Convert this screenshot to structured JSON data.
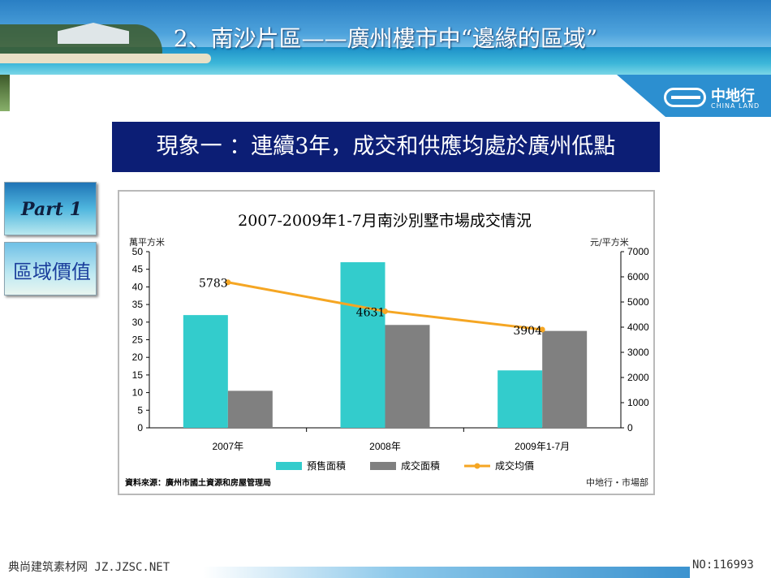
{
  "page": {
    "title": "2、南沙片區——廣州樓市中“邊緣的區域”",
    "headline": "現象一 ：連續3年，成交和供應均處於廣州低點",
    "logo": {
      "cn": "中地行",
      "en": "CHINA LAND"
    },
    "tabs": [
      {
        "label": "Part 1"
      },
      {
        "label": "區域價值"
      }
    ],
    "footer_left": "典尚建筑素材网 JZ.JZSC.NET",
    "footer_right": "NO:116993"
  },
  "colors": {
    "presale": "#33cccc",
    "transaction": "#808080",
    "avg_price": "#f5a623",
    "headline_bg": "#0c1e75"
  },
  "chart_data": {
    "type": "bar",
    "title": "2007-2009年1-7月南沙別墅市場成交情況",
    "categories": [
      "2007年",
      "2008年",
      "2009年1-7月"
    ],
    "y_left_label": "萬平方米",
    "y_right_label": "元/平方米",
    "y_left_ticks": [
      "0",
      "5",
      "10",
      "15",
      "20",
      "25",
      "30",
      "35",
      "40",
      "45",
      "50"
    ],
    "y_right_ticks": [
      "0",
      "1000",
      "2000",
      "3000",
      "4000",
      "5000",
      "6000",
      "7000"
    ],
    "y_left_range": [
      0,
      50
    ],
    "y_right_range": [
      0,
      7000
    ],
    "series": [
      {
        "name": "預售面積",
        "kind": "bar",
        "axis": "left",
        "values": [
          32,
          47,
          16.3
        ]
      },
      {
        "name": "成交面積",
        "kind": "bar",
        "axis": "left",
        "values": [
          10.5,
          29.2,
          27.5
        ]
      },
      {
        "name": "成交均價",
        "kind": "line",
        "axis": "right",
        "values": [
          5783,
          4631,
          3904
        ],
        "labels": [
          "5783",
          "4631",
          "3904"
        ]
      }
    ],
    "legend_position": "bottom",
    "source": "資料來源：廣州市國土資源和房屋管理局",
    "credit": "中地行・市場部"
  }
}
